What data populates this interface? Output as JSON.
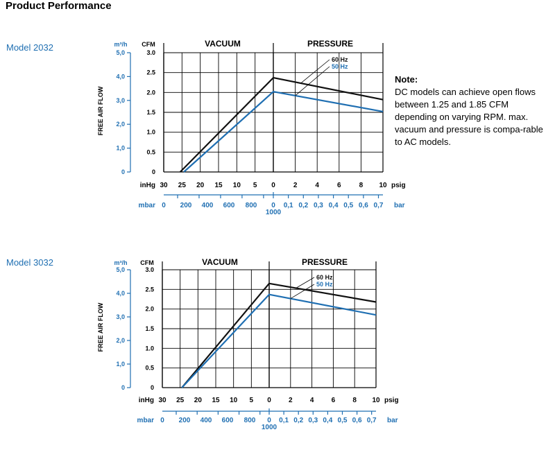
{
  "page": {
    "title": "Product Performance"
  },
  "note": {
    "title": "Note:",
    "text": "DC models can achieve open flows between 1.25 and 1.85 CFM depending on varying RPM. max. vacuum and pressure is compa-rable to AC models."
  },
  "colors": {
    "hz60": "#111111",
    "hz50": "#1f6fb2",
    "m3h_axis": "#1f6fb2",
    "mbar_axis": "#1f6fb2",
    "grid": "#000000"
  },
  "chart_data": [
    {
      "type": "line",
      "model_label": "Model 2032",
      "sections": [
        "VACUUM",
        "PRESSURE"
      ],
      "ylabel": "FREE AIR FLOW",
      "y_unit_label": "CFM",
      "y_ticks": [
        "0",
        "0.5",
        "1.0",
        "1.5",
        "2.0",
        "2.5",
        "3.0"
      ],
      "ylim": [
        0,
        3.0
      ],
      "m3h_unit_label": "m³/h",
      "m3h_ticks": [
        "0",
        "1,0",
        "2,0",
        "3,0",
        "4,0",
        "5,0"
      ],
      "inhg_unit_label": "inHg",
      "inhg_ticks": [
        "30",
        "25",
        "20",
        "15",
        "10",
        "5",
        "0"
      ],
      "psig_unit_label": "psig",
      "psig_ticks": [
        "2",
        "4",
        "6",
        "8",
        "10"
      ],
      "mbar_unit_label": "mbar",
      "mbar_ticks": [
        "0",
        "200",
        "400",
        "600",
        "800",
        "0"
      ],
      "mbar_sublabel": "1000",
      "bar_unit_label": "bar",
      "bar_ticks": [
        "0,1",
        "0,2",
        "0,3",
        "0,4",
        "0,5",
        "0,6",
        "0,7"
      ],
      "x_note": "x: negative = vacuum (inHg), positive = pressure (psig)",
      "series": [
        {
          "name": "60 Hz",
          "points": [
            [
              -25.5,
              0
            ],
            [
              0,
              2.37
            ],
            [
              10,
              1.82
            ]
          ]
        },
        {
          "name": "50 Hz",
          "points": [
            [
              -24.5,
              0
            ],
            [
              0,
              2.02
            ],
            [
              10,
              1.52
            ]
          ]
        }
      ]
    },
    {
      "type": "line",
      "model_label": "Model 3032",
      "sections": [
        "VACUUM",
        "PRESSURE"
      ],
      "ylabel": "FREE AIR FLOW",
      "y_unit_label": "CFM",
      "y_ticks": [
        "0",
        "0.5",
        "1.0",
        "1.5",
        "2.0",
        "2.5",
        "3.0"
      ],
      "ylim": [
        0,
        3.0
      ],
      "m3h_unit_label": "m³/h",
      "m3h_ticks": [
        "0",
        "1,0",
        "2,0",
        "3,0",
        "4,0",
        "5,0"
      ],
      "inhg_unit_label": "inHg",
      "inhg_ticks": [
        "30",
        "25",
        "20",
        "15",
        "10",
        "5",
        "0"
      ],
      "psig_unit_label": "psig",
      "psig_ticks": [
        "2",
        "4",
        "6",
        "8",
        "10"
      ],
      "mbar_unit_label": "mbar",
      "mbar_ticks": [
        "0",
        "200",
        "400",
        "600",
        "800",
        "0"
      ],
      "mbar_sublabel": "1000",
      "bar_unit_label": "bar",
      "bar_ticks": [
        "0,1",
        "0,2",
        "0,3",
        "0,4",
        "0,5",
        "0,6",
        "0,7"
      ],
      "x_note": "x: negative = vacuum (inHg), positive = pressure (psig)",
      "series": [
        {
          "name": "60 Hz",
          "points": [
            [
              -24.5,
              0
            ],
            [
              0,
              2.65
            ],
            [
              10,
              2.18
            ]
          ]
        },
        {
          "name": "50 Hz",
          "points": [
            [
              -24.5,
              0
            ],
            [
              0,
              2.37
            ],
            [
              10,
              1.85
            ]
          ]
        }
      ]
    }
  ]
}
